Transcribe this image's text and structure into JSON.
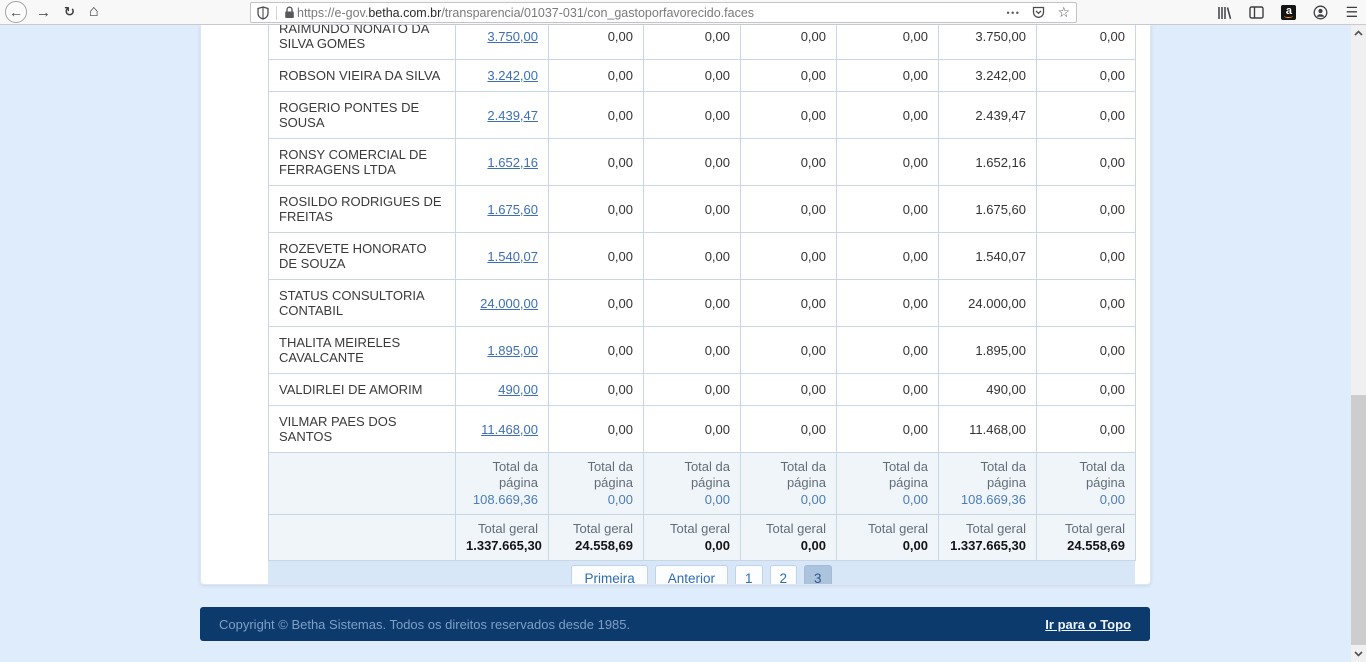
{
  "browser": {
    "url": {
      "prefix": "https://e-gov.",
      "domain": "betha.com.br",
      "path": "/transparencia/01037-031/con_gastoporfavorecido.faces"
    },
    "page_actions": "•••",
    "bookmark_star": "☆",
    "menu_glyph": "☰",
    "back_glyph": "←",
    "forward_glyph": "→",
    "reload_glyph": "↻",
    "home_glyph": "⌂"
  },
  "table": {
    "rows": [
      {
        "name": "RAIMUNDO NONATO DA SILVA GOMES",
        "values": [
          "3.750,00",
          "0,00",
          "0,00",
          "0,00",
          "0,00",
          "3.750,00",
          "0,00"
        ]
      },
      {
        "name": "ROBSON VIEIRA DA SILVA",
        "values": [
          "3.242,00",
          "0,00",
          "0,00",
          "0,00",
          "0,00",
          "3.242,00",
          "0,00"
        ]
      },
      {
        "name": "ROGERIO PONTES DE SOUSA",
        "values": [
          "2.439,47",
          "0,00",
          "0,00",
          "0,00",
          "0,00",
          "2.439,47",
          "0,00"
        ]
      },
      {
        "name": "RONSY COMERCIAL DE FERRAGENS LTDA",
        "values": [
          "1.652,16",
          "0,00",
          "0,00",
          "0,00",
          "0,00",
          "1.652,16",
          "0,00"
        ]
      },
      {
        "name": "ROSILDO RODRIGUES DE FREITAS",
        "values": [
          "1.675,60",
          "0,00",
          "0,00",
          "0,00",
          "0,00",
          "1.675,60",
          "0,00"
        ]
      },
      {
        "name": "ROZEVETE HONORATO DE SOUZA",
        "values": [
          "1.540,07",
          "0,00",
          "0,00",
          "0,00",
          "0,00",
          "1.540,07",
          "0,00"
        ]
      },
      {
        "name": "STATUS CONSULTORIA CONTABIL",
        "values": [
          "24.000,00",
          "0,00",
          "0,00",
          "0,00",
          "0,00",
          "24.000,00",
          "0,00"
        ]
      },
      {
        "name": "THALITA MEIRELES CAVALCANTE",
        "values": [
          "1.895,00",
          "0,00",
          "0,00",
          "0,00",
          "0,00",
          "1.895,00",
          "0,00"
        ]
      },
      {
        "name": "VALDIRLEI DE AMORIM",
        "values": [
          "490,00",
          "0,00",
          "0,00",
          "0,00",
          "0,00",
          "490,00",
          "0,00"
        ]
      },
      {
        "name": "VILMAR PAES DOS SANTOS",
        "values": [
          "11.468,00",
          "0,00",
          "0,00",
          "0,00",
          "0,00",
          "11.468,00",
          "0,00"
        ]
      }
    ],
    "page_total": {
      "label": "Total da página",
      "values": [
        "108.669,36",
        "0,00",
        "0,00",
        "0,00",
        "0,00",
        "108.669,36",
        "0,00"
      ]
    },
    "grand_total": {
      "label": "Total geral",
      "values": [
        "1.337.665,30",
        "24.558,69",
        "0,00",
        "0,00",
        "0,00",
        "1.337.665,30",
        "24.558,69"
      ]
    }
  },
  "pagination": {
    "buttons": [
      {
        "label": "Primeira",
        "active": false,
        "numeric": false
      },
      {
        "label": "Anterior",
        "active": false,
        "numeric": false
      },
      {
        "label": "1",
        "active": false,
        "numeric": true
      },
      {
        "label": "2",
        "active": false,
        "numeric": true
      },
      {
        "label": "3",
        "active": true,
        "numeric": true
      }
    ]
  },
  "footer": {
    "copyright": "Copyright © Betha Sistemas. Todos os direitos reservados desde 1985.",
    "top_link": "Ir para o Topo"
  },
  "colors": {
    "link_blue": "#3c6fb7",
    "page_total_blue": "#4b7db9",
    "page_bg": "#dfecfc",
    "pagination_bar": "#d7e7f8",
    "active_page_bg": "#abc3dd",
    "footer_bg": "#0d3a6d",
    "footer_text": "#7f9fc5"
  }
}
